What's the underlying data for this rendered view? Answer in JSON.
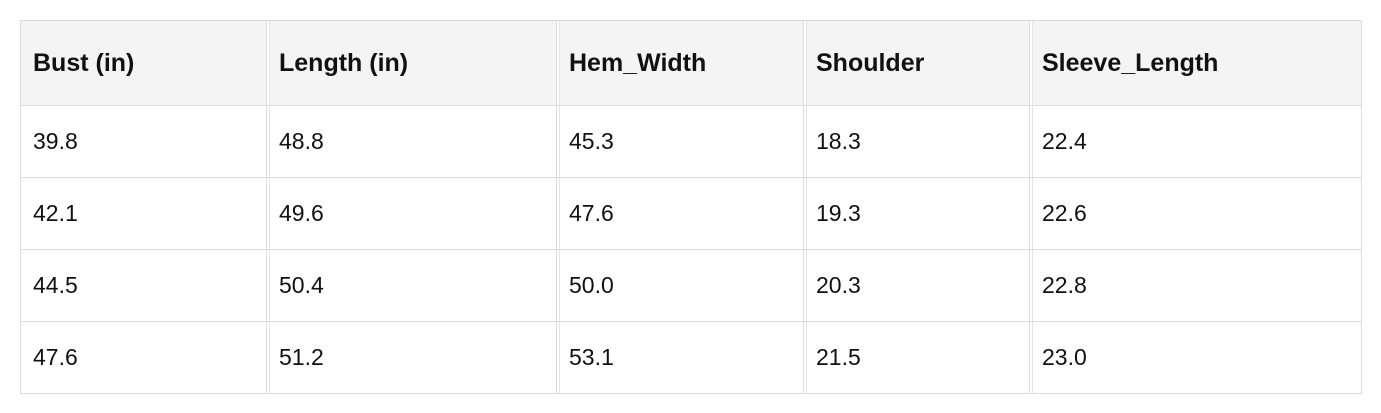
{
  "table": {
    "header": [
      "Bust (in)",
      "Length (in)",
      "Hem_Width",
      "Shoulder",
      "Sleeve_Length"
    ],
    "rows": [
      [
        "39.8",
        "48.8",
        "45.3",
        "18.3",
        "22.4"
      ],
      [
        "42.1",
        "49.6",
        "47.6",
        "19.3",
        "22.6"
      ],
      [
        "44.5",
        "50.4",
        "50.0",
        "20.3",
        "22.8"
      ],
      [
        "47.6",
        "51.2",
        "53.1",
        "21.5",
        "23.0"
      ]
    ]
  }
}
